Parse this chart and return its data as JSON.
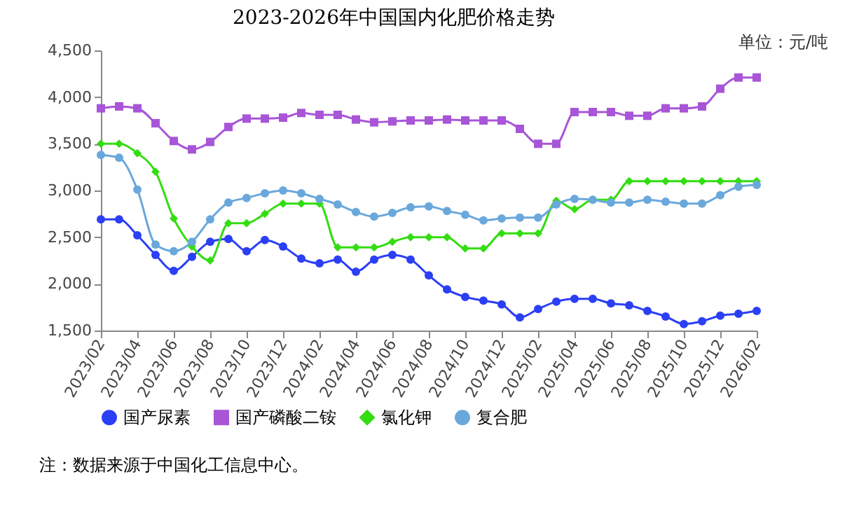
{
  "chart_data": {
    "type": "line",
    "title": "2023-2026年中国国内化肥价格走势",
    "subtitle": "单位：元/吨",
    "annotations": [
      "注：数据来源于中国化工信息中心。"
    ],
    "categories": [
      "2023/02",
      null,
      "2023/04",
      null,
      "2023/06",
      null,
      "2023/08",
      null,
      "2023/10",
      null,
      "2023/12",
      null,
      "2024/02",
      null,
      "2024/04",
      null,
      "2024/06",
      null,
      "2024/08",
      null,
      "2024/10",
      null,
      "2024/12",
      null,
      "2025/02",
      null,
      "2025/04",
      null,
      "2025/06",
      null,
      "2025/08",
      null,
      "2025/10",
      null,
      "2025/12",
      null,
      "2026/02"
    ],
    "ylim": [
      1500,
      4500
    ],
    "yticks": [
      {
        "value": 1500,
        "label": "1,500"
      },
      {
        "value": 2000,
        "label": "2,000"
      },
      {
        "value": 2500,
        "label": "2,500"
      },
      {
        "value": 3000,
        "label": "3,000"
      },
      {
        "value": 3500,
        "label": "3,500"
      },
      {
        "value": 4000,
        "label": "4,000"
      },
      {
        "value": 4500,
        "label": "4,500"
      }
    ],
    "grid": false,
    "legend": "bottom",
    "series": [
      {
        "name": "国产尿素",
        "color": "#2b3ff5",
        "marker": "circle",
        "values": [
          2690,
          2690,
          2520,
          2310,
          2140,
          2290,
          2450,
          2480,
          2350,
          2470,
          2400,
          2270,
          2220,
          2260,
          2130,
          2260,
          2310,
          2260,
          2090,
          1940,
          1860,
          1820,
          1780,
          1640,
          1730,
          1810,
          1840,
          1840,
          1790,
          1770,
          1710,
          1650,
          1570,
          1600,
          1660,
          1680,
          1710
        ]
      },
      {
        "name": "国产磷酸二铵",
        "color": "#a855d8",
        "marker": "square",
        "values": [
          3880,
          3900,
          3880,
          3720,
          3530,
          3440,
          3520,
          3680,
          3770,
          3770,
          3780,
          3830,
          3810,
          3810,
          3760,
          3730,
          3740,
          3750,
          3750,
          3760,
          3750,
          3750,
          3750,
          3660,
          3500,
          3500,
          3840,
          3840,
          3840,
          3800,
          3800,
          3880,
          3880,
          3900,
          4090,
          4210,
          4210
        ]
      },
      {
        "name": "氯化钾",
        "color": "#33dd11",
        "marker": "diamond",
        "values": [
          3500,
          3500,
          3400,
          3200,
          2700,
          2400,
          2250,
          2650,
          2650,
          2750,
          2860,
          2860,
          2860,
          2390,
          2390,
          2390,
          2450,
          2500,
          2500,
          2500,
          2380,
          2380,
          2540,
          2540,
          2540,
          2890,
          2800,
          2900,
          2900,
          3100,
          3100,
          3100,
          3100,
          3100,
          3100,
          3100,
          3100
        ]
      },
      {
        "name": "复合肥",
        "color": "#6aa8dc",
        "marker": "circle",
        "values": [
          3380,
          3350,
          3010,
          2420,
          2350,
          2450,
          2690,
          2870,
          2920,
          2970,
          3000,
          2970,
          2910,
          2850,
          2770,
          2720,
          2760,
          2820,
          2830,
          2780,
          2740,
          2680,
          2700,
          2710,
          2710,
          2850,
          2910,
          2900,
          2870,
          2870,
          2900,
          2880,
          2860,
          2860,
          2950,
          3040,
          3060
        ]
      }
    ]
  }
}
